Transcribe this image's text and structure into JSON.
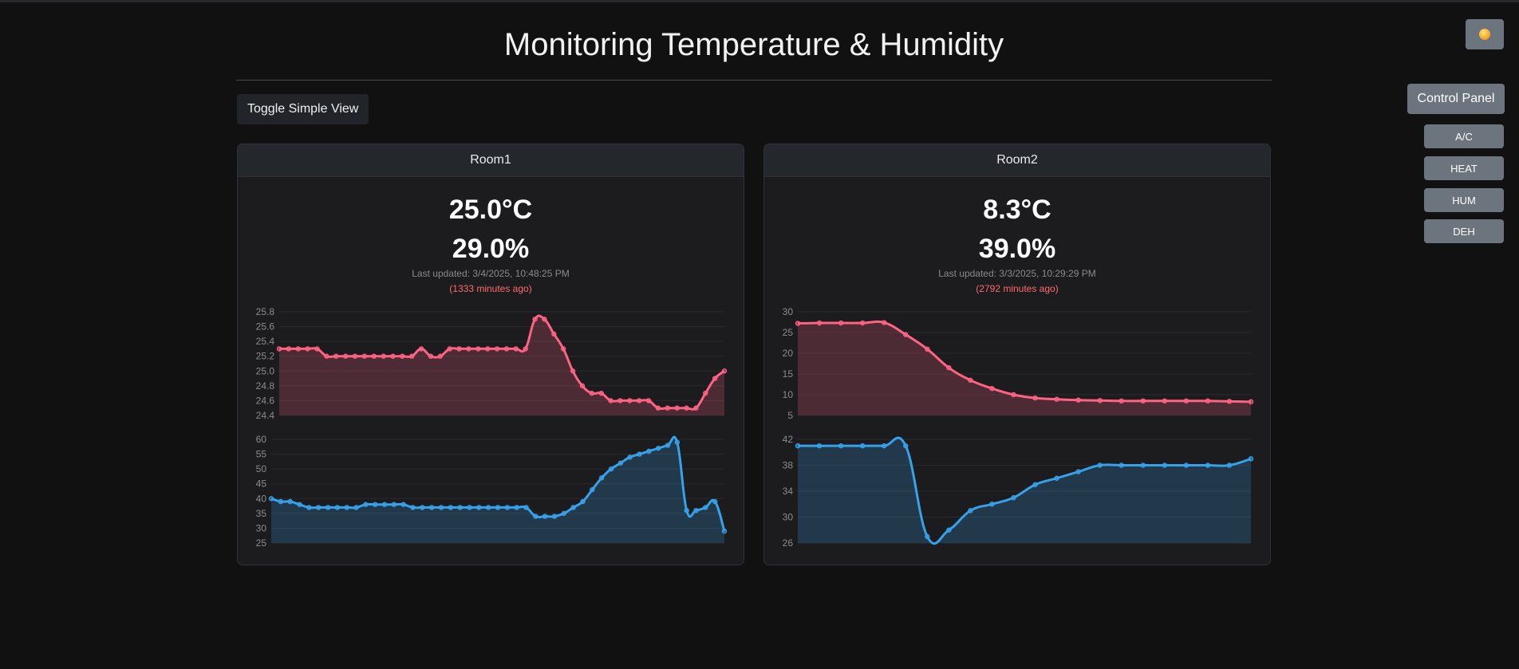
{
  "page": {
    "title": "Monitoring Temperature & Humidity"
  },
  "controls": {
    "toggle_label": "Toggle Simple View",
    "control_panel_label": "Control Panel",
    "buttons": [
      "A/C",
      "HEAT",
      "HUM",
      "DEH"
    ]
  },
  "colors": {
    "temperature": "#ff6384",
    "humidity": "#36a2eb",
    "theme_icon": "sun-icon"
  },
  "rooms": [
    {
      "name": "Room1",
      "temperature": "25.0°C",
      "humidity": "29.0%",
      "last_updated": "Last updated: 3/4/2025, 10:48:25 PM",
      "ago": "(1333 minutes ago)"
    },
    {
      "name": "Room2",
      "temperature": "8.3°C",
      "humidity": "39.0%",
      "last_updated": "Last updated: 3/3/2025, 10:29:29 PM",
      "ago": "(2792 minutes ago)"
    }
  ],
  "chart_data": [
    {
      "type": "area",
      "room": "Room1",
      "metric": "temperature",
      "ylim": [
        24.4,
        25.8
      ],
      "yticks": [
        "25.8",
        "25.6",
        "25.4",
        "25.2",
        "25.0",
        "24.8",
        "24.6",
        "24.4"
      ],
      "values": [
        25.3,
        25.3,
        25.3,
        25.3,
        25.3,
        25.2,
        25.2,
        25.2,
        25.2,
        25.2,
        25.2,
        25.2,
        25.2,
        25.2,
        25.2,
        25.3,
        25.2,
        25.2,
        25.3,
        25.3,
        25.3,
        25.3,
        25.3,
        25.3,
        25.3,
        25.3,
        25.3,
        25.7,
        25.7,
        25.5,
        25.3,
        25.0,
        24.8,
        24.7,
        24.7,
        24.6,
        24.6,
        24.6,
        24.6,
        24.6,
        24.5,
        24.5,
        24.5,
        24.5,
        24.5,
        24.7,
        24.9,
        25.0
      ]
    },
    {
      "type": "area",
      "room": "Room1",
      "metric": "humidity",
      "ylim": [
        25,
        60
      ],
      "yticks": [
        "60",
        "55",
        "50",
        "45",
        "40",
        "35",
        "30",
        "25"
      ],
      "values": [
        40,
        39,
        39,
        38,
        37,
        37,
        37,
        37,
        37,
        37,
        38,
        38,
        38,
        38,
        38,
        37,
        37,
        37,
        37,
        37,
        37,
        37,
        37,
        37,
        37,
        37,
        37,
        37,
        34,
        34,
        34,
        35,
        37,
        39,
        43,
        47,
        50,
        52,
        54,
        55,
        56,
        57,
        58,
        59,
        36,
        36,
        37,
        39,
        29
      ]
    },
    {
      "type": "area",
      "room": "Room2",
      "metric": "temperature",
      "ylim": [
        5,
        30
      ],
      "yticks": [
        "30",
        "25",
        "20",
        "15",
        "10",
        "5"
      ],
      "values": [
        27.2,
        27.3,
        27.3,
        27.3,
        27.4,
        24.5,
        21.0,
        16.5,
        13.5,
        11.5,
        10.0,
        9.2,
        8.9,
        8.7,
        8.6,
        8.5,
        8.5,
        8.5,
        8.5,
        8.5,
        8.4,
        8.3
      ]
    },
    {
      "type": "area",
      "room": "Room2",
      "metric": "humidity",
      "ylim": [
        26,
        42
      ],
      "yticks": [
        "42",
        "38",
        "34",
        "30",
        "26"
      ],
      "values": [
        41,
        41,
        41,
        41,
        41,
        41,
        27,
        28,
        31,
        32,
        33,
        35,
        36,
        37,
        38,
        38,
        38,
        38,
        38,
        38,
        38,
        39
      ]
    }
  ]
}
